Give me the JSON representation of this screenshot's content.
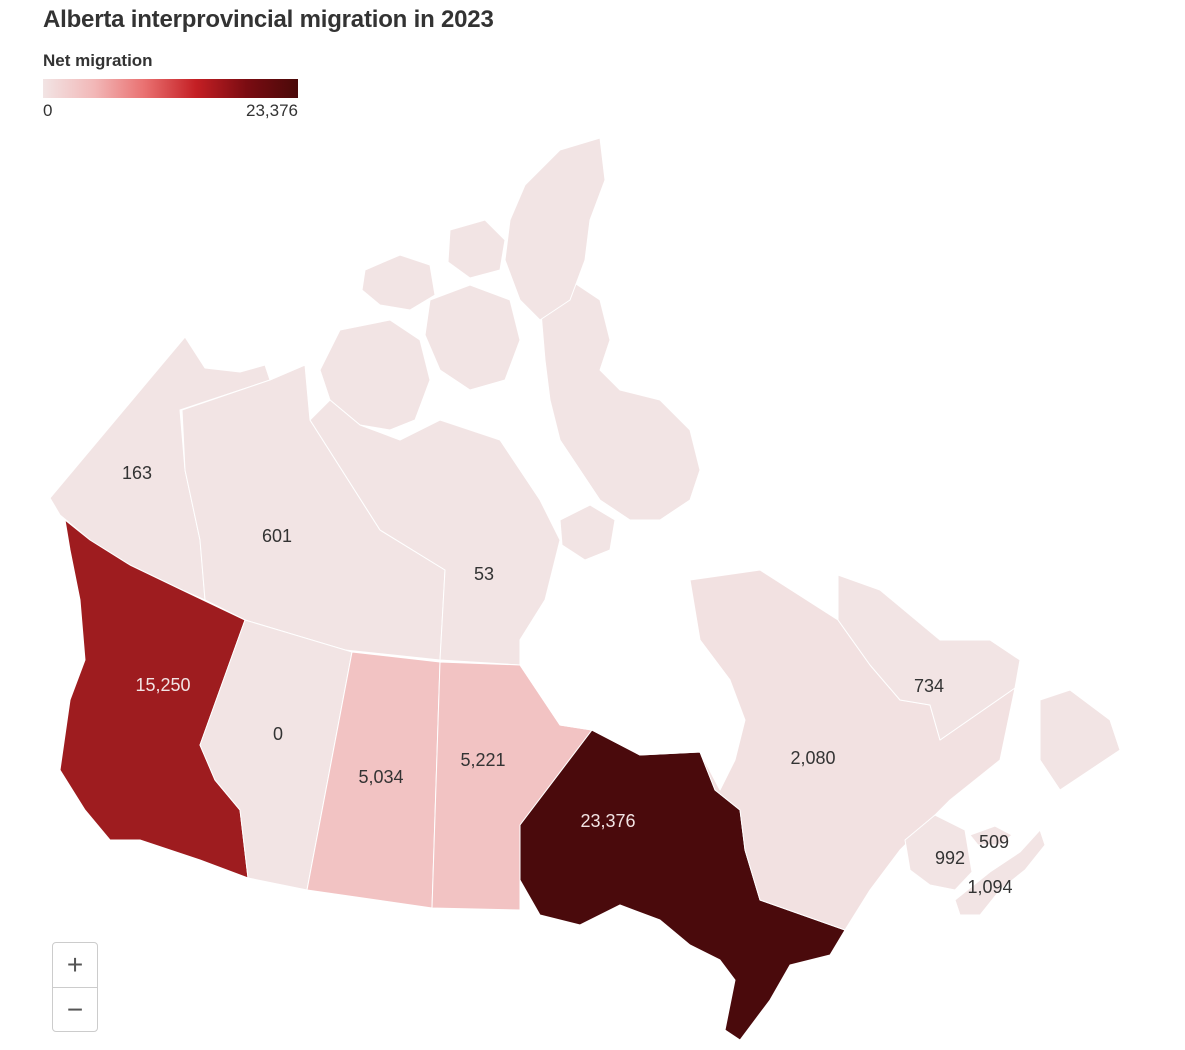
{
  "title": "Alberta interprovincial migration in 2023",
  "legend": {
    "title": "Net migration",
    "min_label": "0",
    "max_label": "23,376",
    "colors": [
      "#f2e4e4",
      "#f2b8b8",
      "#e97070",
      "#c41f24",
      "#7a0c12",
      "#4a0909"
    ]
  },
  "zoom": {
    "in_label": "+",
    "out_label": "−"
  },
  "regions": [
    {
      "id": "yukon",
      "label": "163",
      "value": 163,
      "fill": "#f2e4e4",
      "text_color": "#333333"
    },
    {
      "id": "northwest-territories",
      "label": "601",
      "value": 601,
      "fill": "#f2e4e4",
      "text_color": "#333333"
    },
    {
      "id": "nunavut",
      "label": "53",
      "value": 53,
      "fill": "#f2e4e4",
      "text_color": "#333333"
    },
    {
      "id": "british-columbia",
      "label": "15,250",
      "value": 15250,
      "fill": "#9e1c1f",
      "text_color": "#f2e4e4"
    },
    {
      "id": "alberta",
      "label": "0",
      "value": 0,
      "fill": "#f2e4e4",
      "text_color": "#333333"
    },
    {
      "id": "saskatchewan",
      "label": "5,034",
      "value": 5034,
      "fill": "#f2c3c3",
      "text_color": "#333333"
    },
    {
      "id": "manitoba",
      "label": "5,221",
      "value": 5221,
      "fill": "#f2c3c3",
      "text_color": "#333333"
    },
    {
      "id": "ontario",
      "label": "23,376",
      "value": 23376,
      "fill": "#4a0a0c",
      "text_color": "#f2e4e4"
    },
    {
      "id": "quebec",
      "label": "2,080",
      "value": 2080,
      "fill": "#f2e1e1",
      "text_color": "#333333"
    },
    {
      "id": "newfoundland-and-labrador",
      "label": "734",
      "value": 734,
      "fill": "#f2e4e4",
      "text_color": "#333333"
    },
    {
      "id": "new-brunswick",
      "label": "992",
      "value": 992,
      "fill": "#f2e4e4",
      "text_color": "#333333"
    },
    {
      "id": "prince-edward-island",
      "label": "509",
      "value": 509,
      "fill": "#f2e4e4",
      "text_color": "#333333"
    },
    {
      "id": "nova-scotia",
      "label": "1,094",
      "value": 1094,
      "fill": "#f2e4e4",
      "text_color": "#333333"
    }
  ]
}
